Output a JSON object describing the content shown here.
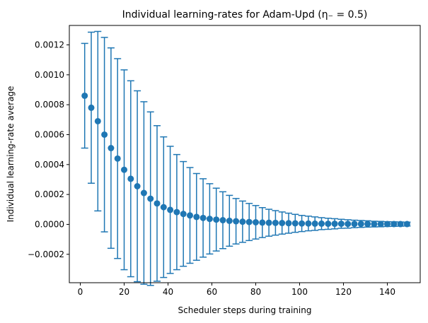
{
  "chart_data": {
    "type": "scatter",
    "title": "Individual learning-rates for Adam-Upd (η₋ = 0.5)",
    "xlabel": "Scheduler steps during training",
    "ylabel": "Individual learning-rate average",
    "xlim": [
      -5,
      155
    ],
    "ylim": [
      -0.00039,
      0.00133
    ],
    "grid": false,
    "legend": "none",
    "color": "#1f77b4",
    "x_ticks": [
      0,
      20,
      40,
      60,
      80,
      100,
      120,
      140
    ],
    "x_tick_labels": [
      "0",
      "20",
      "40",
      "60",
      "80",
      "100",
      "120",
      "140"
    ],
    "y_ticks": [
      -0.0002,
      0.0,
      0.0002,
      0.0004,
      0.0006,
      0.0008,
      0.001,
      0.0012
    ],
    "y_tick_labels": [
      "−0.0002",
      "0.0000",
      "0.0002",
      "0.0004",
      "0.0006",
      "0.0008",
      "0.0010",
      "0.0012"
    ],
    "series": [
      {
        "type": "errorbar",
        "x": [
          2,
          5,
          8,
          11,
          14,
          17,
          20,
          23,
          26,
          29,
          32,
          35,
          38,
          41,
          44,
          47,
          50,
          53,
          56,
          59,
          62,
          65,
          68,
          71,
          74,
          77,
          80,
          83,
          86,
          89,
          92,
          95,
          98,
          101,
          104,
          107,
          110,
          113,
          116,
          119,
          122,
          125,
          128,
          131,
          134,
          137,
          140,
          143,
          146,
          149
        ],
        "y": [
          0.00086,
          0.00078,
          0.00069,
          0.0006,
          0.00051,
          0.00044,
          0.000365,
          0.000305,
          0.000255,
          0.00021,
          0.000172,
          0.00014,
          0.000115,
          9.7e-05,
          8.2e-05,
          7e-05,
          6e-05,
          5e-05,
          4.3e-05,
          3.7e-05,
          3.2e-05,
          2.8e-05,
          2.4e-05,
          2.1e-05,
          1.8e-05,
          1.6e-05,
          1.4e-05,
          1.2e-05,
          1.1e-05,
          1e-05,
          9e-06,
          8e-06,
          7e-06,
          6e-06,
          6e-06,
          5e-06,
          5e-06,
          4e-06,
          4e-06,
          4e-06,
          3e-06,
          3e-06,
          3e-06,
          3e-06,
          2e-06,
          2e-06,
          2e-06,
          2e-06,
          2e-06,
          2e-06
        ],
        "err": [
          0.00035,
          0.000505,
          0.0006,
          0.00065,
          0.00067,
          0.000668,
          0.000668,
          0.000655,
          0.000638,
          0.00061,
          0.00058,
          0.00052,
          0.00047,
          0.000425,
          0.000385,
          0.00035,
          0.00032,
          0.00029,
          0.000262,
          0.000235,
          0.00021,
          0.00019,
          0.00017,
          0.000152,
          0.000138,
          0.000124,
          0.000112,
          0.0001,
          9e-05,
          8.2e-05,
          7.4e-05,
          6.7e-05,
          6e-05,
          5.4e-05,
          4.9e-05,
          4.5e-05,
          4e-05,
          3.7e-05,
          3.4e-05,
          3e-05,
          2.8e-05,
          2.5e-05,
          2.3e-05,
          2.1e-05,
          1.9e-05,
          1.8e-05,
          1.6e-05,
          1.5e-05,
          1.4e-05,
          1.3e-05
        ]
      }
    ]
  }
}
